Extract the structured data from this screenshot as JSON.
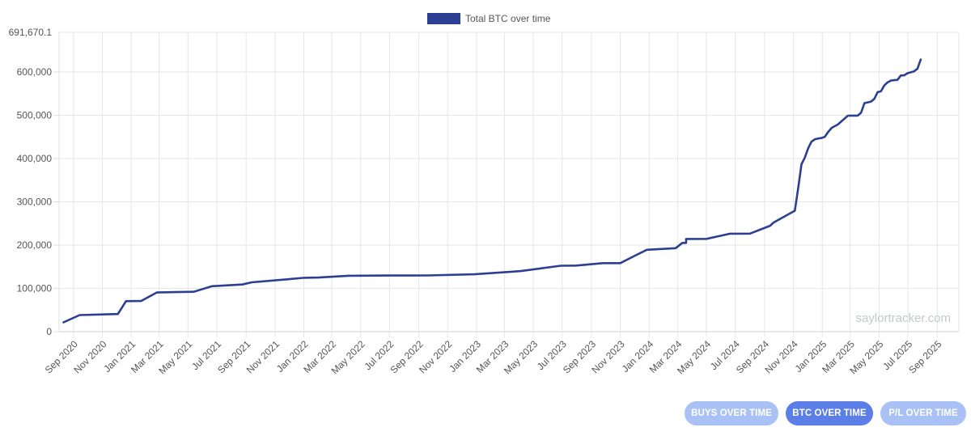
{
  "chart_data": {
    "type": "line",
    "title": "",
    "xlabel": "",
    "ylabel": "",
    "ylim": [
      0,
      691670.1
    ],
    "y_ticks": [
      0,
      100000,
      200000,
      300000,
      400000,
      500000,
      600000
    ],
    "y_tick_labels": [
      "0",
      "100,000",
      "200,000",
      "300,000",
      "400,000",
      "500,000",
      "600,000"
    ],
    "y_max_label": "691,670.1",
    "x_ticks": [
      "2020-09-01",
      "2020-11-01",
      "2021-01-01",
      "2021-03-01",
      "2021-05-01",
      "2021-07-01",
      "2021-09-01",
      "2021-11-01",
      "2022-01-01",
      "2022-03-01",
      "2022-05-01",
      "2022-07-01",
      "2022-09-01",
      "2022-11-01",
      "2023-01-01",
      "2023-03-01",
      "2023-05-01",
      "2023-07-01",
      "2023-09-01",
      "2023-11-01",
      "2024-01-01",
      "2024-03-01",
      "2024-05-01",
      "2024-07-01",
      "2024-09-01",
      "2024-11-01",
      "2025-01-01",
      "2025-03-01",
      "2025-05-01",
      "2025-07-01",
      "2025-09-01"
    ],
    "x_tick_labels": [
      "Sep 2020",
      "Nov 2020",
      "Jan 2021",
      "Mar 2021",
      "May 2021",
      "Jul 2021",
      "Sep 2021",
      "Nov 2021",
      "Jan 2022",
      "Mar 2022",
      "May 2022",
      "Jul 2022",
      "Sep 2022",
      "Nov 2022",
      "Jan 2023",
      "Mar 2023",
      "May 2023",
      "Jul 2023",
      "Sep 2023",
      "Nov 2023",
      "Jan 2024",
      "Mar 2024",
      "May 2024",
      "Jul 2024",
      "Sep 2024",
      "Nov 2024",
      "Jan 2025",
      "Mar 2025",
      "May 2025",
      "Jul 2025",
      "Sep 2025"
    ],
    "grid": true,
    "legend": "top-center",
    "series": [
      {
        "name": "Total BTC over time",
        "color": "#2c3f92",
        "points": [
          [
            "2020-08-11",
            21454
          ],
          [
            "2020-09-14",
            38250
          ],
          [
            "2020-12-04",
            40824
          ],
          [
            "2020-12-21",
            70470
          ],
          [
            "2021-01-22",
            70784
          ],
          [
            "2021-02-24",
            90531
          ],
          [
            "2021-04-05",
            91326
          ],
          [
            "2021-05-13",
            92079
          ],
          [
            "2021-06-21",
            105085
          ],
          [
            "2021-08-24",
            108992
          ],
          [
            "2021-09-13",
            114042
          ],
          [
            "2021-11-29",
            121044
          ],
          [
            "2021-12-30",
            124391
          ],
          [
            "2022-02-01",
            125051
          ],
          [
            "2022-04-05",
            129218
          ],
          [
            "2022-06-29",
            129699
          ],
          [
            "2022-09-20",
            130000
          ],
          [
            "2022-12-27",
            132500
          ],
          [
            "2023-04-05",
            140000
          ],
          [
            "2023-06-28",
            152333
          ],
          [
            "2023-07-31",
            152800
          ],
          [
            "2023-09-25",
            158245
          ],
          [
            "2023-11-01",
            158400
          ],
          [
            "2023-11-30",
            174530
          ],
          [
            "2023-12-27",
            189150
          ],
          [
            "2024-02-26",
            193000
          ],
          [
            "2024-03-11",
            205000
          ],
          [
            "2024-03-19",
            205000
          ],
          [
            "2024-03-19",
            214246
          ],
          [
            "2024-05-01",
            214400
          ],
          [
            "2024-06-20",
            226331
          ],
          [
            "2024-08-01",
            226500
          ],
          [
            "2024-09-13",
            244800
          ],
          [
            "2024-09-20",
            252220
          ],
          [
            "2024-11-04",
            279420
          ],
          [
            "2024-11-11",
            331200
          ],
          [
            "2024-11-18",
            386700
          ],
          [
            "2024-11-25",
            402100
          ],
          [
            "2024-12-02",
            423650
          ],
          [
            "2024-12-09",
            439000
          ],
          [
            "2024-12-16",
            444262
          ],
          [
            "2024-12-23",
            446400
          ],
          [
            "2024-12-30",
            447470
          ],
          [
            "2025-01-06",
            450000
          ],
          [
            "2025-01-13",
            461000
          ],
          [
            "2025-01-21",
            471107
          ],
          [
            "2025-02-03",
            478740
          ],
          [
            "2025-02-24",
            499096
          ],
          [
            "2025-03-10",
            499226
          ],
          [
            "2025-03-17",
            499226
          ],
          [
            "2025-03-24",
            506137
          ],
          [
            "2025-03-31",
            528185
          ],
          [
            "2025-04-14",
            531644
          ],
          [
            "2025-04-21",
            538200
          ],
          [
            "2025-04-28",
            553555
          ],
          [
            "2025-05-05",
            555450
          ],
          [
            "2025-05-12",
            568840
          ],
          [
            "2025-05-19",
            576230
          ],
          [
            "2025-05-26",
            580250
          ],
          [
            "2025-06-09",
            582000
          ],
          [
            "2025-06-16",
            592100
          ],
          [
            "2025-06-23",
            592345
          ],
          [
            "2025-06-30",
            597325
          ],
          [
            "2025-07-14",
            601550
          ],
          [
            "2025-07-21",
            607770
          ],
          [
            "2025-07-28",
            628791
          ]
        ]
      }
    ],
    "watermark": "saylortracker.com"
  },
  "buttons": {
    "buys_label": "BUYS OVER TIME",
    "btc_label": "BTC OVER TIME",
    "pl_label": "P/L OVER TIME",
    "inactive_color": "#a9c1f5",
    "active_color": "#5b7fe6"
  }
}
